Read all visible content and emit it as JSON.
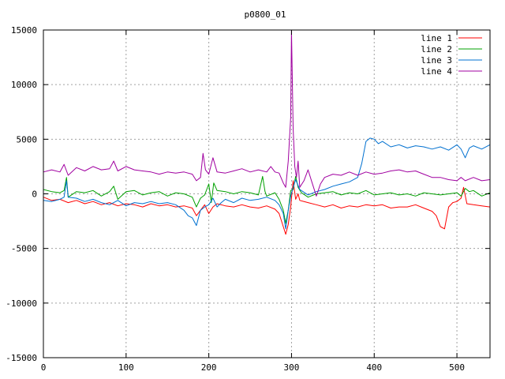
{
  "chart_data": {
    "type": "line",
    "title": "p0800_01",
    "xlabel": "",
    "ylabel": "",
    "xlim": [
      0,
      540
    ],
    "ylim": [
      -15000,
      15000
    ],
    "xticks": [
      0,
      100,
      200,
      300,
      400,
      500
    ],
    "yticks": [
      -15000,
      -10000,
      -5000,
      0,
      5000,
      10000,
      15000
    ],
    "grid": true,
    "legend_position": "top-right",
    "series": [
      {
        "name": "line 1",
        "color": "#ff0000",
        "points": [
          [
            0,
            -300
          ],
          [
            10,
            -600
          ],
          [
            20,
            -500
          ],
          [
            30,
            -800
          ],
          [
            40,
            -600
          ],
          [
            50,
            -900
          ],
          [
            60,
            -700
          ],
          [
            70,
            -1000
          ],
          [
            80,
            -800
          ],
          [
            90,
            -1100
          ],
          [
            100,
            -900
          ],
          [
            110,
            -1000
          ],
          [
            120,
            -1200
          ],
          [
            130,
            -900
          ],
          [
            140,
            -1100
          ],
          [
            150,
            -1000
          ],
          [
            160,
            -1200
          ],
          [
            170,
            -1100
          ],
          [
            180,
            -1300
          ],
          [
            185,
            -2000
          ],
          [
            190,
            -1500
          ],
          [
            195,
            -1000
          ],
          [
            200,
            -1800
          ],
          [
            205,
            -1200
          ],
          [
            210,
            -900
          ],
          [
            220,
            -1100
          ],
          [
            230,
            -1200
          ],
          [
            240,
            -1000
          ],
          [
            250,
            -1200
          ],
          [
            260,
            -1300
          ],
          [
            270,
            -1100
          ],
          [
            280,
            -1400
          ],
          [
            285,
            -1800
          ],
          [
            290,
            -3000
          ],
          [
            293,
            -3700
          ],
          [
            296,
            -2800
          ],
          [
            299,
            -1200
          ],
          [
            302,
            1200
          ],
          [
            305,
            -500
          ],
          [
            308,
            0
          ],
          [
            310,
            -600
          ],
          [
            320,
            -800
          ],
          [
            330,
            -1000
          ],
          [
            340,
            -1200
          ],
          [
            350,
            -1000
          ],
          [
            360,
            -1300
          ],
          [
            370,
            -1100
          ],
          [
            380,
            -1200
          ],
          [
            390,
            -1000
          ],
          [
            400,
            -1100
          ],
          [
            410,
            -1000
          ],
          [
            420,
            -1300
          ],
          [
            430,
            -1200
          ],
          [
            440,
            -1200
          ],
          [
            450,
            -1000
          ],
          [
            460,
            -1300
          ],
          [
            470,
            -1600
          ],
          [
            475,
            -2000
          ],
          [
            480,
            -3000
          ],
          [
            485,
            -3200
          ],
          [
            490,
            -1200
          ],
          [
            495,
            -800
          ],
          [
            500,
            -700
          ],
          [
            505,
            -400
          ],
          [
            508,
            600
          ],
          [
            512,
            -900
          ],
          [
            520,
            -1000
          ],
          [
            530,
            -1100
          ],
          [
            540,
            -1200
          ]
        ]
      },
      {
        "name": "line 2",
        "color": "#00a000",
        "points": [
          [
            0,
            400
          ],
          [
            10,
            200
          ],
          [
            20,
            100
          ],
          [
            25,
            300
          ],
          [
            28,
            1500
          ],
          [
            30,
            -300
          ],
          [
            40,
            200
          ],
          [
            50,
            100
          ],
          [
            60,
            300
          ],
          [
            70,
            -200
          ],
          [
            80,
            200
          ],
          [
            85,
            700
          ],
          [
            90,
            -500
          ],
          [
            100,
            200
          ],
          [
            110,
            300
          ],
          [
            120,
            -100
          ],
          [
            130,
            100
          ],
          [
            140,
            200
          ],
          [
            150,
            -200
          ],
          [
            160,
            100
          ],
          [
            170,
            0
          ],
          [
            180,
            -300
          ],
          [
            185,
            -1200
          ],
          [
            190,
            -400
          ],
          [
            195,
            -100
          ],
          [
            200,
            900
          ],
          [
            203,
            -800
          ],
          [
            206,
            1000
          ],
          [
            210,
            300
          ],
          [
            220,
            200
          ],
          [
            230,
            0
          ],
          [
            240,
            200
          ],
          [
            250,
            100
          ],
          [
            260,
            -100
          ],
          [
            265,
            1600
          ],
          [
            268,
            200
          ],
          [
            270,
            -200
          ],
          [
            280,
            100
          ],
          [
            285,
            -500
          ],
          [
            290,
            -1500
          ],
          [
            293,
            -2700
          ],
          [
            296,
            -1500
          ],
          [
            299,
            300
          ],
          [
            302,
            400
          ],
          [
            305,
            1600
          ],
          [
            308,
            600
          ],
          [
            312,
            100
          ],
          [
            320,
            -300
          ],
          [
            330,
            0
          ],
          [
            340,
            100
          ],
          [
            350,
            200
          ],
          [
            360,
            -100
          ],
          [
            370,
            100
          ],
          [
            380,
            0
          ],
          [
            390,
            300
          ],
          [
            400,
            -100
          ],
          [
            410,
            0
          ],
          [
            420,
            100
          ],
          [
            430,
            -100
          ],
          [
            440,
            0
          ],
          [
            450,
            -200
          ],
          [
            460,
            100
          ],
          [
            470,
            0
          ],
          [
            480,
            -100
          ],
          [
            490,
            0
          ],
          [
            500,
            100
          ],
          [
            505,
            -200
          ],
          [
            510,
            500
          ],
          [
            515,
            200
          ],
          [
            520,
            300
          ],
          [
            530,
            -200
          ],
          [
            540,
            100
          ]
        ]
      },
      {
        "name": "line 3",
        "color": "#0070d0",
        "points": [
          [
            0,
            -600
          ],
          [
            10,
            -700
          ],
          [
            20,
            -500
          ],
          [
            25,
            -300
          ],
          [
            28,
            1200
          ],
          [
            30,
            -300
          ],
          [
            40,
            -400
          ],
          [
            50,
            -700
          ],
          [
            60,
            -500
          ],
          [
            70,
            -800
          ],
          [
            80,
            -1000
          ],
          [
            90,
            -600
          ],
          [
            100,
            -1100
          ],
          [
            110,
            -800
          ],
          [
            120,
            -900
          ],
          [
            130,
            -700
          ],
          [
            140,
            -900
          ],
          [
            150,
            -800
          ],
          [
            160,
            -1000
          ],
          [
            170,
            -1500
          ],
          [
            175,
            -2000
          ],
          [
            180,
            -2200
          ],
          [
            185,
            -2900
          ],
          [
            190,
            -1500
          ],
          [
            195,
            -1200
          ],
          [
            200,
            -1000
          ],
          [
            205,
            -400
          ],
          [
            210,
            -1200
          ],
          [
            215,
            -800
          ],
          [
            220,
            -500
          ],
          [
            230,
            -800
          ],
          [
            240,
            -400
          ],
          [
            250,
            -600
          ],
          [
            260,
            -500
          ],
          [
            270,
            -300
          ],
          [
            280,
            -600
          ],
          [
            285,
            -1000
          ],
          [
            290,
            -1800
          ],
          [
            293,
            -3200
          ],
          [
            296,
            -1500
          ],
          [
            299,
            -200
          ],
          [
            302,
            600
          ],
          [
            305,
            1300
          ],
          [
            310,
            400
          ],
          [
            320,
            -100
          ],
          [
            330,
            200
          ],
          [
            340,
            400
          ],
          [
            350,
            700
          ],
          [
            360,
            900
          ],
          [
            370,
            1100
          ],
          [
            380,
            1500
          ],
          [
            385,
            2800
          ],
          [
            390,
            4800
          ],
          [
            395,
            5100
          ],
          [
            400,
            5000
          ],
          [
            405,
            4600
          ],
          [
            410,
            4800
          ],
          [
            420,
            4300
          ],
          [
            430,
            4500
          ],
          [
            440,
            4200
          ],
          [
            450,
            4400
          ],
          [
            460,
            4300
          ],
          [
            470,
            4100
          ],
          [
            480,
            4300
          ],
          [
            490,
            4000
          ],
          [
            500,
            4500
          ],
          [
            505,
            4100
          ],
          [
            510,
            3300
          ],
          [
            515,
            4200
          ],
          [
            520,
            4400
          ],
          [
            530,
            4100
          ],
          [
            540,
            4500
          ]
        ]
      },
      {
        "name": "line 4",
        "color": "#a000a0",
        "points": [
          [
            0,
            2000
          ],
          [
            10,
            2200
          ],
          [
            20,
            2000
          ],
          [
            25,
            2700
          ],
          [
            30,
            1700
          ],
          [
            40,
            2400
          ],
          [
            50,
            2100
          ],
          [
            60,
            2500
          ],
          [
            70,
            2200
          ],
          [
            80,
            2300
          ],
          [
            85,
            3000
          ],
          [
            90,
            2100
          ],
          [
            100,
            2500
          ],
          [
            110,
            2200
          ],
          [
            120,
            2100
          ],
          [
            130,
            2000
          ],
          [
            140,
            1800
          ],
          [
            150,
            2000
          ],
          [
            160,
            1900
          ],
          [
            170,
            2000
          ],
          [
            180,
            1800
          ],
          [
            185,
            1200
          ],
          [
            190,
            1500
          ],
          [
            193,
            3700
          ],
          [
            196,
            2200
          ],
          [
            200,
            1800
          ],
          [
            205,
            3300
          ],
          [
            210,
            2000
          ],
          [
            220,
            1900
          ],
          [
            230,
            2100
          ],
          [
            240,
            2300
          ],
          [
            250,
            2000
          ],
          [
            260,
            2200
          ],
          [
            270,
            2000
          ],
          [
            275,
            2500
          ],
          [
            280,
            2000
          ],
          [
            285,
            1900
          ],
          [
            290,
            1000
          ],
          [
            293,
            600
          ],
          [
            296,
            3000
          ],
          [
            299,
            7000
          ],
          [
            300,
            15000
          ],
          [
            302,
            6000
          ],
          [
            304,
            2500
          ],
          [
            306,
            1500
          ],
          [
            308,
            3000
          ],
          [
            310,
            600
          ],
          [
            315,
            1200
          ],
          [
            320,
            2200
          ],
          [
            325,
            1000
          ],
          [
            330,
            -200
          ],
          [
            335,
            900
          ],
          [
            340,
            1500
          ],
          [
            350,
            1800
          ],
          [
            360,
            1700
          ],
          [
            370,
            2000
          ],
          [
            380,
            1700
          ],
          [
            390,
            2000
          ],
          [
            400,
            1800
          ],
          [
            410,
            1900
          ],
          [
            420,
            2100
          ],
          [
            430,
            2200
          ],
          [
            440,
            2000
          ],
          [
            450,
            2100
          ],
          [
            460,
            1800
          ],
          [
            470,
            1500
          ],
          [
            480,
            1500
          ],
          [
            490,
            1300
          ],
          [
            500,
            1200
          ],
          [
            505,
            1500
          ],
          [
            510,
            1200
          ],
          [
            520,
            1500
          ],
          [
            530,
            1200
          ],
          [
            540,
            1300
          ]
        ]
      }
    ]
  }
}
